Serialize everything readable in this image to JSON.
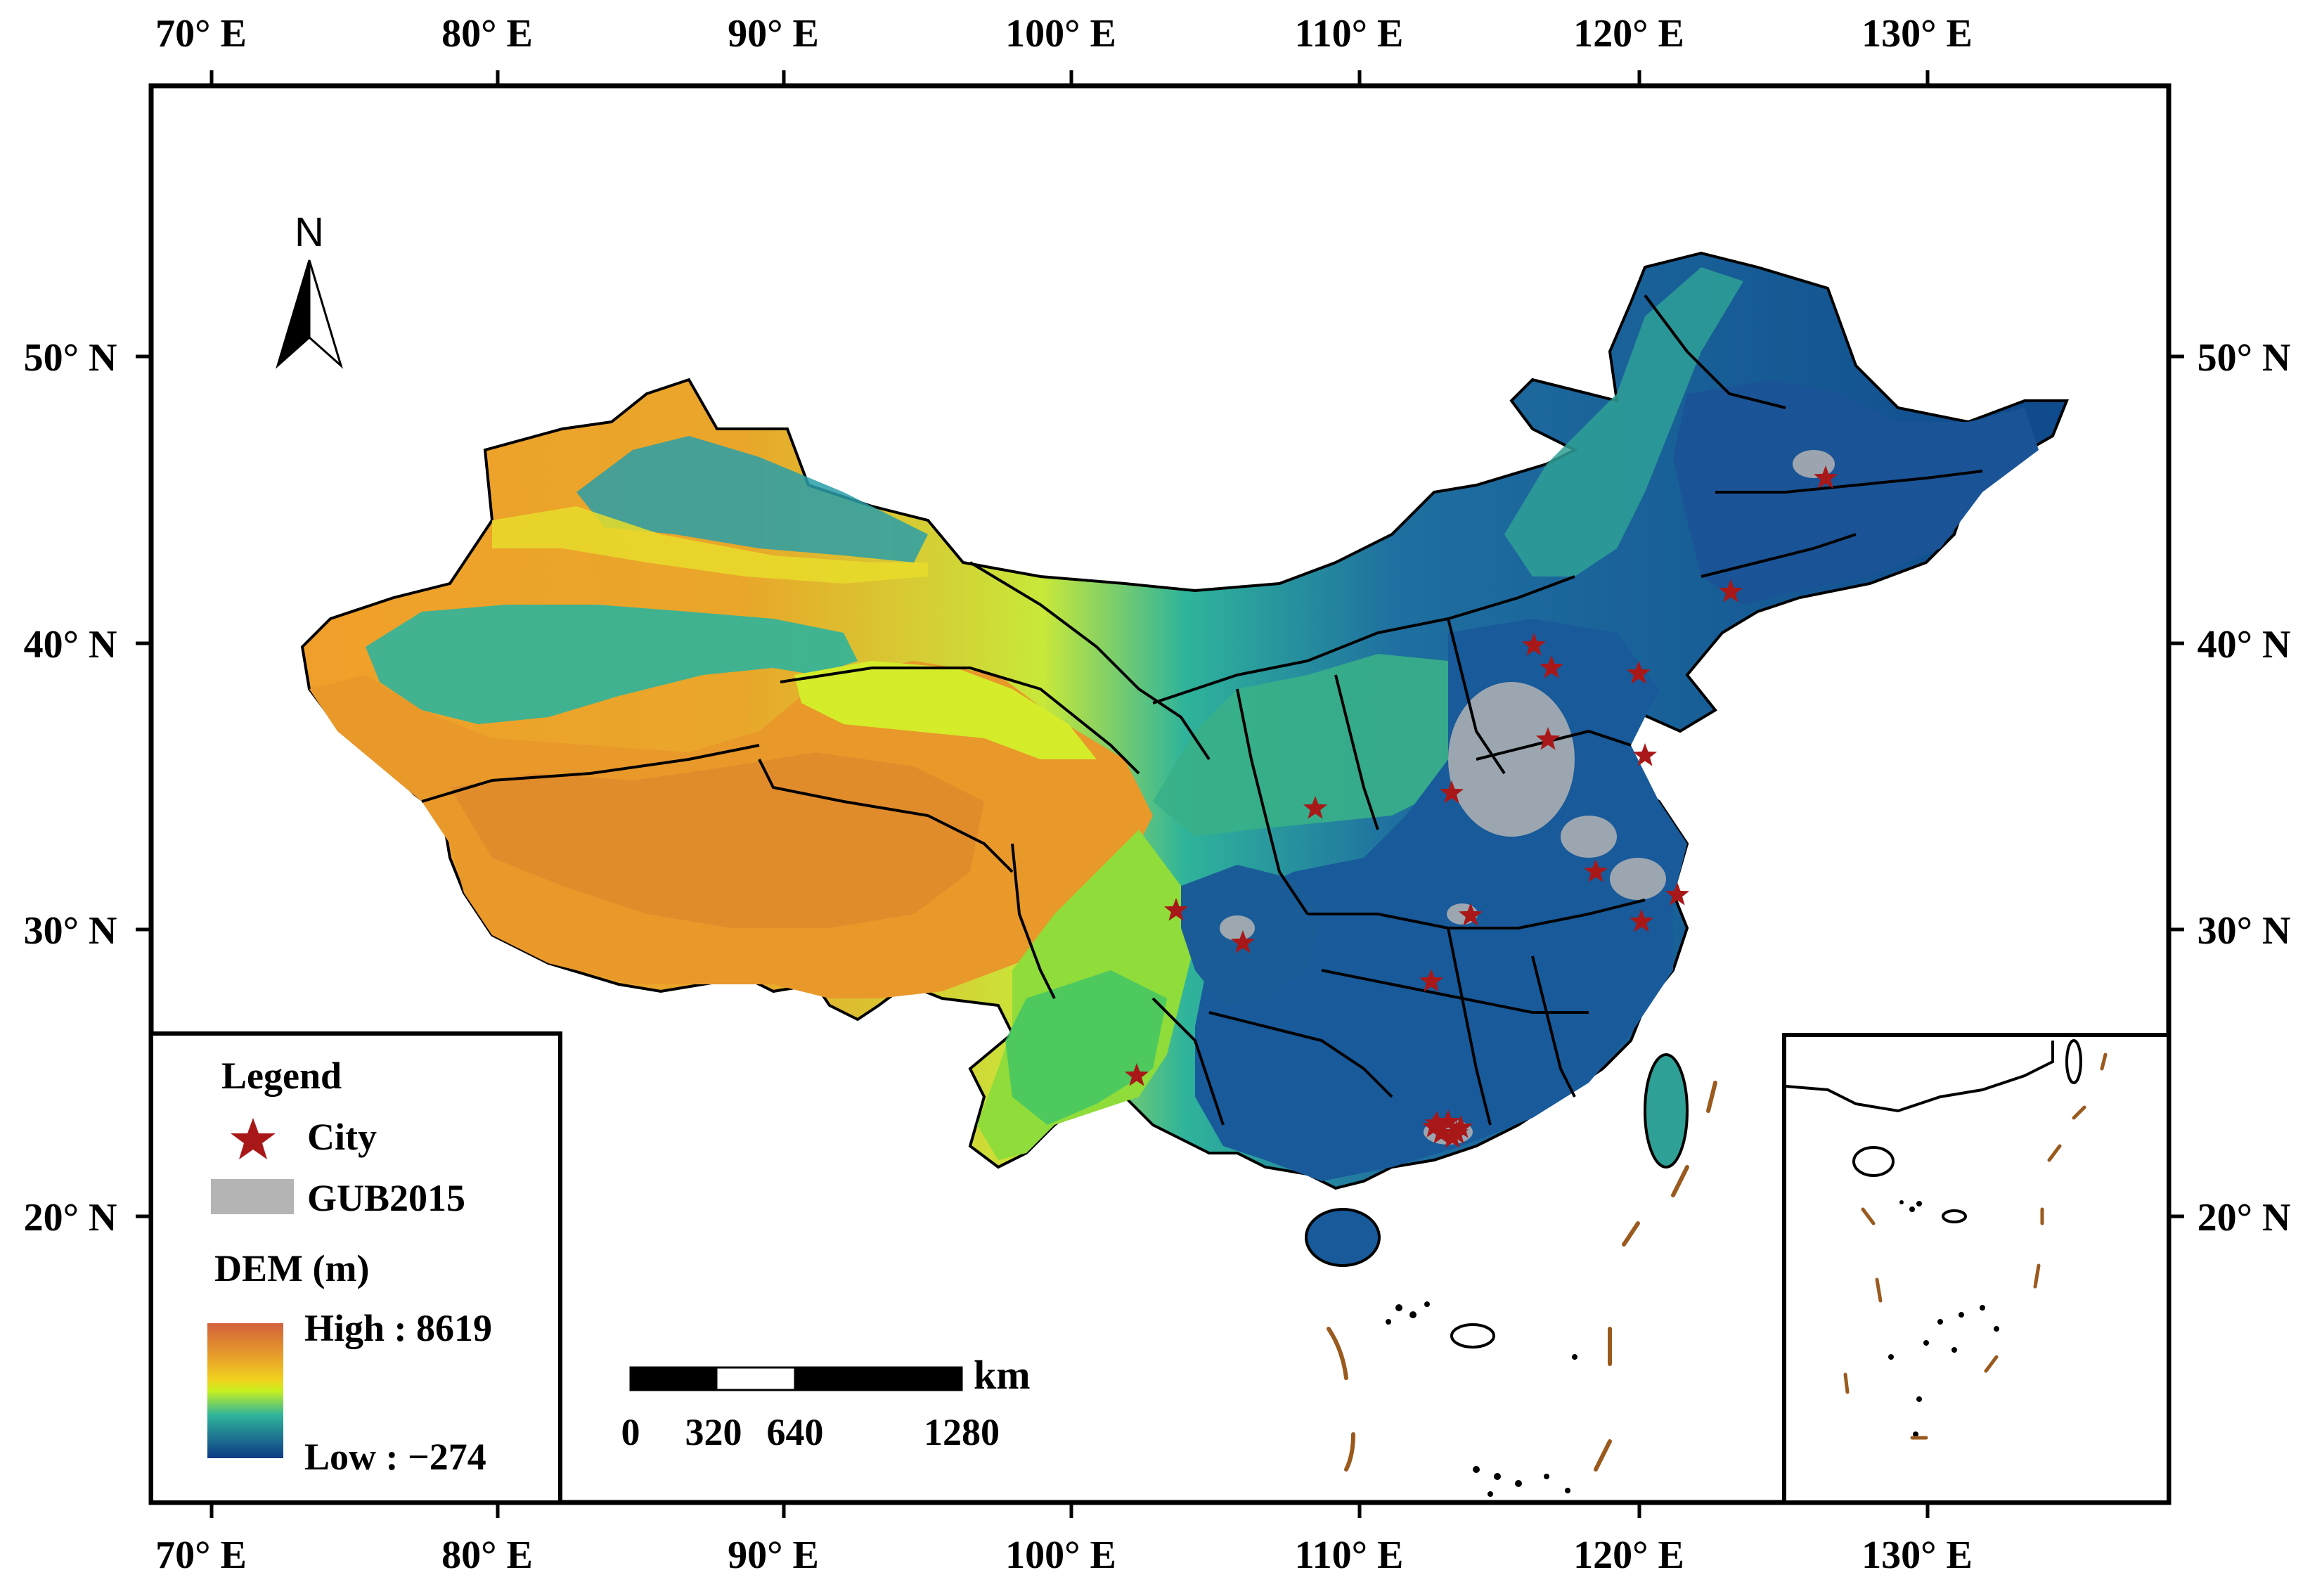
{
  "colors": {
    "frame": "#000000",
    "city_star": "#a81818",
    "gub_gray": "#b4b4b4",
    "dem_high": "#d2603c",
    "dem_mid_high": "#f0d21e",
    "dem_mid": "#c8f01e",
    "dem_mid_low": "#2fb49b",
    "dem_low": "#0d3a86",
    "dashed_line": "#9a5a1e"
  },
  "axes": {
    "top_labels": [
      "70° E",
      "80° E",
      "90° E",
      "100° E",
      "110° E",
      "120° E",
      "130° E"
    ],
    "bottom_labels": [
      "70° E",
      "80° E",
      "90° E",
      "100° E",
      "110° E",
      "120° E",
      "130° E"
    ],
    "left_labels": [
      "50° N",
      "40° N",
      "30° N",
      "20° N"
    ],
    "right_labels": [
      "50° N",
      "40° N",
      "30° N",
      "20° N"
    ]
  },
  "north_arrow": {
    "label": "N",
    "icon": "north-arrow-icon"
  },
  "legend": {
    "title": "Legend",
    "city_label": "City",
    "gub_label": "GUB2015",
    "dem_title": "DEM (m)",
    "dem_high": "High : 8619",
    "dem_low": "Low : −274"
  },
  "scale_bar": {
    "unit": "km",
    "labels": [
      "0",
      "320",
      "640",
      "1280"
    ]
  },
  "cities_count": 24
}
